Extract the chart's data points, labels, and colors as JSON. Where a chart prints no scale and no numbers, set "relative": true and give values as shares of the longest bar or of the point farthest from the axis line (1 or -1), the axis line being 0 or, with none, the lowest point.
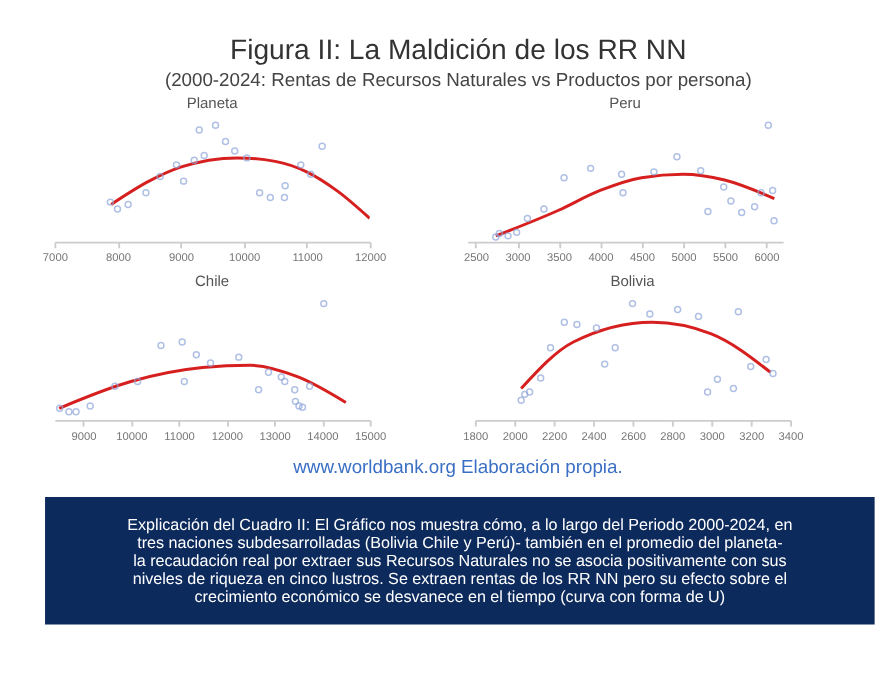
{
  "chart_data": [
    {
      "type": "other",
      "title": "Figura II: La Maldición de los RR NN",
      "subtitle": "(2000-2024: Rentas de Recursos Naturales vs Productos por persona)"
    },
    {
      "type": "scatter",
      "title": "Planeta",
      "relative": true,
      "marker": "circle",
      "xlim": [
        7000,
        12000
      ],
      "xticks": [
        7000,
        8000,
        9000,
        10000,
        11000,
        12000
      ],
      "series": [
        {
          "type": "scatter",
          "color": "#8fa6d9",
          "x": [
            7887,
            8000,
            8169,
            8451,
            8676,
            8935,
            9048,
            9217,
            9296,
            9375,
            9555,
            9713,
            9859,
            10051,
            10254,
            10423,
            10648,
            10659,
            10907,
            11065,
            11245
          ],
          "values": [
            0.34,
            0.28,
            0.32,
            0.42,
            0.56,
            0.66,
            0.52,
            0.7,
            0.96,
            0.74,
            1.0,
            0.86,
            0.78,
            0.72,
            0.42,
            0.38,
            0.38,
            0.48,
            0.66,
            0.58,
            0.82
          ]
        },
        {
          "type": "line",
          "marker": "none",
          "color": "#d62020",
          "x": [
            7900,
            8500,
            9000,
            9900,
            10500,
            11000,
            11500,
            12000
          ],
          "values": [
            0.32,
            0.52,
            0.64,
            0.72,
            0.69,
            0.6,
            0.43,
            0.2
          ]
        }
      ]
    },
    {
      "type": "scatter",
      "title": "Peru",
      "relative": true,
      "marker": "circle",
      "xlim": [
        2400,
        6200
      ],
      "xticks": [
        2500,
        3000,
        3500,
        4000,
        4500,
        5000,
        5500,
        6000
      ],
      "series": [
        {
          "type": "scatter",
          "color": "#8fa6d9",
          "x": [
            2743,
            2786,
            2890,
            2994,
            3124,
            3323,
            3566,
            3886,
            4259,
            4276,
            4649,
            4926,
            5212,
            5299,
            5490,
            5576,
            5706,
            5862,
            5940,
            6027,
            6079,
            6096
          ],
          "values": [
            0.04,
            0.07,
            0.05,
            0.08,
            0.2,
            0.28,
            0.55,
            0.63,
            0.58,
            0.42,
            0.6,
            0.73,
            0.61,
            0.26,
            0.47,
            0.35,
            0.25,
            0.3,
            0.42,
            1.0,
            0.44,
            0.18
          ]
        },
        {
          "type": "line",
          "marker": "none",
          "color": "#d62020",
          "x": [
            2743,
            3500,
            4000,
            4500,
            5000,
            5500,
            6100
          ],
          "values": [
            0.05,
            0.27,
            0.44,
            0.55,
            0.58,
            0.53,
            0.37
          ]
        }
      ]
    },
    {
      "type": "scatter",
      "title": "Chile",
      "relative": true,
      "marker": "circle",
      "xlim": [
        8400,
        15000
      ],
      "xticks": [
        9000,
        10000,
        11000,
        12000,
        13000,
        14000,
        15000
      ],
      "series": [
        {
          "type": "scatter",
          "color": "#8fa6d9",
          "x": [
            8511,
            8704,
            8852,
            9148,
            9667,
            10141,
            10630,
            11074,
            11119,
            11370,
            11667,
            12259,
            12674,
            12881,
            13148,
            13222,
            13430,
            13444,
            13519,
            13593,
            13741,
            14037
          ],
          "values": [
            0.1,
            0.07,
            0.07,
            0.12,
            0.29,
            0.33,
            0.64,
            0.67,
            0.33,
            0.56,
            0.49,
            0.54,
            0.26,
            0.41,
            0.37,
            0.33,
            0.26,
            0.16,
            0.12,
            0.11,
            0.29,
            1.0
          ]
        },
        {
          "type": "line",
          "marker": "none",
          "color": "#d62020",
          "x": [
            8500,
            10000,
            11500,
            12500,
            13500,
            14500
          ],
          "values": [
            0.1,
            0.33,
            0.45,
            0.47,
            0.37,
            0.15
          ]
        }
      ]
    },
    {
      "type": "scatter",
      "title": "Bolivia",
      "relative": true,
      "marker": "circle",
      "xlim": [
        1800,
        3400
      ],
      "xticks": [
        1800,
        2000,
        2200,
        2400,
        2600,
        2800,
        3000,
        3200,
        3400
      ],
      "series": [
        {
          "type": "scatter",
          "color": "#8fa6d9",
          "x": [
            2035,
            2053,
            2078,
            2134,
            2184,
            2254,
            2318,
            2417,
            2459,
            2512,
            2600,
            2688,
            2829,
            2935,
            2981,
            3031,
            3112,
            3137,
            3200,
            3278,
            3313
          ],
          "values": [
            0.17,
            0.22,
            0.24,
            0.36,
            0.62,
            0.84,
            0.82,
            0.79,
            0.48,
            0.62,
            1.0,
            0.91,
            0.95,
            0.89,
            0.24,
            0.35,
            0.27,
            0.93,
            0.46,
            0.52,
            0.4
          ]
        },
        {
          "type": "line",
          "marker": "none",
          "color": "#d62020",
          "x": [
            2035,
            2300,
            2700,
            3000,
            3300
          ],
          "values": [
            0.27,
            0.67,
            0.84,
            0.74,
            0.41
          ]
        }
      ]
    },
    {
      "type": "other",
      "annotations": [
        "www.worldbank.org Elaboración propia.",
        "Explicación del Cuadro II: El Gráfico nos muestra cómo, a lo largo del Periodo 2000-2024, en tres naciones subdesarrolladas (Bolivia Chile y Perú)- también en el promedio del planeta- la recaudación real por extraer sus Recursos Naturales no se asocia positivamente con sus niveles de riqueza en cinco lustros. Se extraen rentas de los RR NN pero su efecto sobre el crecimiento económico se desvanece en el tiempo (curva con forma de U)"
      ]
    }
  ]
}
